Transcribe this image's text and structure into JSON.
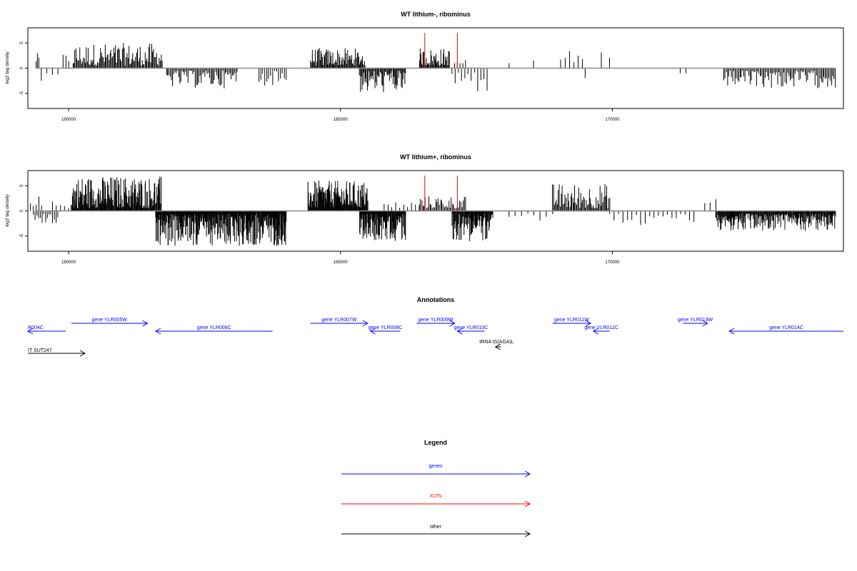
{
  "chart_data": [
    {
      "type": "bar",
      "title": "WT lithium-, ribominus",
      "ylabel": "log2 tag density",
      "xlim": [
        159250,
        174250
      ],
      "ylim": [
        -8,
        8
      ],
      "xticks": [
        160000,
        165000,
        170000
      ],
      "yticks": [
        5,
        0,
        -5
      ],
      "tracks": [
        {
          "strand": "plus",
          "color": "#000000",
          "segments": [
            {
              "start": 159400,
              "end": 159450,
              "n": 3,
              "min": 1,
              "max": 3
            },
            {
              "start": 159900,
              "end": 160000,
              "n": 3,
              "min": 1,
              "max": 3
            },
            {
              "start": 160080,
              "end": 161720,
              "n": 95,
              "min": 0.5,
              "max": 5
            },
            {
              "start": 164450,
              "end": 165450,
              "n": 70,
              "min": 0.5,
              "max": 4
            },
            {
              "start": 166450,
              "end": 167000,
              "n": 40,
              "min": 0.5,
              "max": 4
            },
            {
              "start": 167100,
              "end": 167300,
              "n": 5,
              "min": 0.5,
              "max": 2
            },
            {
              "start": 168100,
              "end": 168100,
              "n": 1,
              "min": 1,
              "max": 1
            },
            {
              "start": 168550,
              "end": 168550,
              "n": 1,
              "min": 1.5,
              "max": 1.5
            },
            {
              "start": 169050,
              "end": 169450,
              "n": 6,
              "min": 1,
              "max": 3.5
            },
            {
              "start": 169800,
              "end": 169950,
              "n": 2,
              "min": 2,
              "max": 3.5
            }
          ]
        },
        {
          "strand": "minus",
          "color": "#000000",
          "segments": [
            {
              "start": 159500,
              "end": 159800,
              "n": 4,
              "min": 1,
              "max": 3
            },
            {
              "start": 161800,
              "end": 163100,
              "n": 60,
              "min": 0.5,
              "max": 4
            },
            {
              "start": 163500,
              "end": 164000,
              "n": 15,
              "min": 0.5,
              "max": 3.5
            },
            {
              "start": 165350,
              "end": 166200,
              "n": 55,
              "min": 0.5,
              "max": 5
            },
            {
              "start": 167050,
              "end": 167700,
              "n": 12,
              "min": 0.5,
              "max": 5
            },
            {
              "start": 169500,
              "end": 169500,
              "n": 1,
              "min": 2,
              "max": 2
            },
            {
              "start": 171250,
              "end": 171350,
              "n": 2,
              "min": 1,
              "max": 1.5
            },
            {
              "start": 172050,
              "end": 174100,
              "n": 90,
              "min": 0.5,
              "max": 4
            }
          ]
        },
        {
          "strand": "plus",
          "color": "#ff0000",
          "segments": [
            {
              "start": 166550,
              "end": 166550,
              "n": 1,
              "min": 7,
              "max": 7
            },
            {
              "start": 167150,
              "end": 167150,
              "n": 1,
              "min": 7,
              "max": 7
            }
          ]
        }
      ]
    },
    {
      "type": "bar",
      "title": "WT lithium+, ribominus",
      "ylabel": "log2 tag density",
      "xlim": [
        159250,
        174250
      ],
      "ylim": [
        -8,
        8
      ],
      "xticks": [
        160000,
        165000,
        170000
      ],
      "yticks": [
        5,
        0,
        -5
      ],
      "tracks": [
        {
          "strand": "plus",
          "color": "#000000",
          "segments": [
            {
              "start": 159300,
              "end": 159500,
              "n": 5,
              "min": 1,
              "max": 3
            },
            {
              "start": 159700,
              "end": 160000,
              "n": 5,
              "min": 0.5,
              "max": 2
            },
            {
              "start": 160050,
              "end": 161700,
              "n": 180,
              "min": 0.5,
              "max": 7
            },
            {
              "start": 164400,
              "end": 165500,
              "n": 140,
              "min": 0.5,
              "max": 6
            },
            {
              "start": 165800,
              "end": 166450,
              "n": 10,
              "min": 0.5,
              "max": 2
            },
            {
              "start": 166450,
              "end": 167300,
              "n": 40,
              "min": 0.5,
              "max": 3
            },
            {
              "start": 168900,
              "end": 169950,
              "n": 60,
              "min": 0.5,
              "max": 5.5
            },
            {
              "start": 171700,
              "end": 171900,
              "n": 3,
              "min": 1,
              "max": 2.5
            }
          ]
        },
        {
          "strand": "minus",
          "color": "#000000",
          "segments": [
            {
              "start": 159350,
              "end": 159800,
              "n": 15,
              "min": 0.5,
              "max": 3
            },
            {
              "start": 161600,
              "end": 164000,
              "n": 320,
              "min": 0.5,
              "max": 7
            },
            {
              "start": 165350,
              "end": 166200,
              "n": 110,
              "min": 0.5,
              "max": 6
            },
            {
              "start": 167050,
              "end": 167800,
              "n": 80,
              "min": 0.5,
              "max": 6
            },
            {
              "start": 168100,
              "end": 168900,
              "n": 8,
              "min": 0.5,
              "max": 2
            },
            {
              "start": 169950,
              "end": 171500,
              "n": 20,
              "min": 0.5,
              "max": 3
            },
            {
              "start": 171900,
              "end": 174100,
              "n": 220,
              "min": 0.5,
              "max": 4
            }
          ]
        },
        {
          "strand": "plus",
          "color": "#ff0000",
          "segments": [
            {
              "start": 166550,
              "end": 166550,
              "n": 1,
              "min": 7,
              "max": 7
            },
            {
              "start": 167150,
              "end": 167150,
              "n": 1,
              "min": 7,
              "max": 7
            }
          ]
        }
      ]
    }
  ],
  "annotations": {
    "title": "Annotations",
    "xlim": [
      159250,
      174250
    ],
    "features": [
      {
        "label": "R004C",
        "start": 159250,
        "end": 159950,
        "strand": "-",
        "row": 1,
        "color": "#0000ff"
      },
      {
        "label": "gene YLR005W",
        "start": 160050,
        "end": 161450,
        "strand": "+",
        "row": 0,
        "color": "#0000ff"
      },
      {
        "label": "gene YLR006C",
        "start": 161600,
        "end": 163750,
        "strand": "-",
        "row": 1,
        "color": "#0000ff"
      },
      {
        "label": "gene YLR007W",
        "start": 164450,
        "end": 165500,
        "strand": "+",
        "row": 0,
        "color": "#0000ff"
      },
      {
        "label": "gene YLR008C",
        "start": 165550,
        "end": 166100,
        "strand": "-",
        "row": 1,
        "color": "#0000ff"
      },
      {
        "label": "gene YLR009W",
        "start": 166400,
        "end": 167100,
        "strand": "+",
        "row": 0,
        "color": "#0000ff"
      },
      {
        "label": "gene YLR010C",
        "start": 167150,
        "end": 167650,
        "strand": "-",
        "row": 1,
        "color": "#0000ff"
      },
      {
        "label": "gene YLR011W",
        "start": 168900,
        "end": 169600,
        "strand": "+",
        "row": 0,
        "color": "#0000ff"
      },
      {
        "label": "gene YLR012C",
        "start": 169650,
        "end": 169950,
        "strand": "-",
        "row": 1,
        "color": "#0000ff"
      },
      {
        "label": "gene YLR013W",
        "start": 171300,
        "end": 171750,
        "strand": "+",
        "row": 0,
        "color": "#0000ff"
      },
      {
        "label": "gene YLR014C",
        "start": 172150,
        "end": 174250,
        "strand": "-",
        "row": 1,
        "color": "#0000ff"
      },
      {
        "label": "tRNA tS(AGA)L",
        "start": 167850,
        "end": 167950,
        "strand": "-",
        "row": 2,
        "color": "#000000"
      },
      {
        "label": "IT SUT247",
        "start": 159250,
        "end": 160300,
        "strand": "+",
        "row": 3,
        "color": "#000000"
      }
    ]
  },
  "legend": {
    "title": "Legend",
    "items": [
      {
        "label": "genes",
        "color": "#0000ff"
      },
      {
        "label": "XUTs",
        "color": "#ff0000"
      },
      {
        "label": "other",
        "color": "#000000"
      }
    ]
  }
}
